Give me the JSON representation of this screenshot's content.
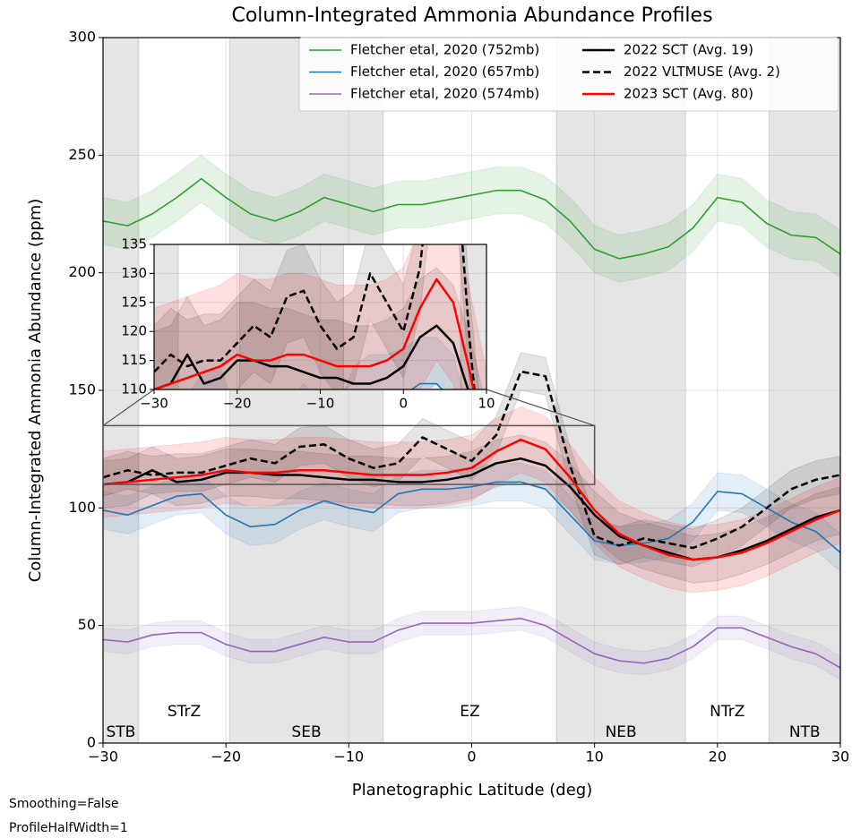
{
  "chart_data": {
    "type": "line",
    "title": "Column-Integrated Ammonia Abundance Profiles",
    "xlabel": "Planetographic Latitude (deg)",
    "ylabel": "Column-Integrated Ammonia Abundance (ppm)",
    "x": [
      -30,
      -28,
      -26,
      -24,
      -22,
      -20,
      -18,
      -16,
      -14,
      -12,
      -10,
      -8,
      -6,
      -4,
      -2,
      0,
      2,
      4,
      6,
      8,
      10,
      12,
      14,
      16,
      18,
      20,
      22,
      24,
      26,
      28,
      30
    ],
    "xlim": [
      -30,
      30
    ],
    "ylim": [
      0,
      300
    ],
    "xticks": [
      {
        "value": -30,
        "label": "−30"
      },
      {
        "value": -20,
        "label": "−20"
      },
      {
        "value": -10,
        "label": "−10"
      },
      0,
      10,
      20,
      30
    ],
    "yticks": [
      0,
      50,
      100,
      150,
      200,
      250,
      300
    ],
    "grid": true,
    "series": [
      {
        "name": "Fletcher etal, 2020 (752mb)",
        "color": "#2ca02c",
        "dash": false,
        "error": 10,
        "values": [
          222,
          220,
          225,
          232,
          240,
          232,
          225,
          222,
          226,
          232,
          229,
          226,
          229,
          229,
          231,
          233,
          235,
          235,
          231,
          222,
          210,
          206,
          208,
          211,
          219,
          232,
          230,
          221,
          216,
          215,
          208
        ]
      },
      {
        "name": "Fletcher etal, 2020 (657mb)",
        "color": "#1f77b4",
        "dash": false,
        "error": 8,
        "values": [
          99,
          97,
          101,
          105,
          106,
          97,
          92,
          93,
          99,
          103,
          100,
          98,
          106,
          108,
          108,
          109,
          111,
          111,
          108,
          97,
          86,
          84,
          85,
          87,
          94,
          107,
          106,
          100,
          94,
          90,
          81
        ]
      },
      {
        "name": "Fletcher etal, 2020 (574mb)",
        "color": "#9467bd",
        "dash": false,
        "error": 5,
        "values": [
          44,
          43,
          46,
          47,
          47,
          42,
          39,
          39,
          42,
          45,
          43,
          43,
          48,
          51,
          51,
          51,
          52,
          53,
          50,
          44,
          38,
          35,
          34,
          36,
          41,
          49,
          49,
          45,
          41,
          38,
          32
        ]
      },
      {
        "name": "2022 SCT (Avg. 19)",
        "color": "#000000",
        "dash": false,
        "error": 10,
        "values": [
          110,
          111,
          116,
          111,
          112,
          115,
          115,
          114,
          114,
          113,
          112,
          112,
          111,
          111,
          112,
          114,
          119,
          121,
          118,
          109,
          97,
          88,
          84,
          81,
          78,
          79,
          82,
          86,
          91,
          96,
          99
        ]
      },
      {
        "name": "2022 VLTMUSE (Avg. 2)",
        "color": "#000000",
        "dash": true,
        "error": 8,
        "values": [
          113,
          116,
          114,
          115,
          115,
          118,
          121,
          119,
          126,
          127,
          121,
          117,
          119,
          130,
          125,
          120,
          131,
          158,
          156,
          118,
          88,
          84,
          87,
          85,
          83,
          87,
          92,
          100,
          108,
          112,
          114
        ]
      },
      {
        "name": "2023 SCT (Avg. 80)",
        "color": "#ff0000",
        "dash": false,
        "error": 14,
        "values": [
          110,
          111,
          112,
          113,
          114,
          116,
          115,
          115,
          116,
          116,
          115,
          114,
          114,
          114,
          115,
          117,
          124,
          129,
          125,
          113,
          99,
          89,
          84,
          80,
          78,
          79,
          81,
          85,
          90,
          95,
          99
        ]
      }
    ],
    "zones": [
      {
        "name": "STB",
        "start": -30,
        "end": -27.1,
        "shaded": true
      },
      {
        "name": "STrZ",
        "start": -27.1,
        "end": -19.7,
        "shaded": false
      },
      {
        "name": "SEB",
        "start": -19.7,
        "end": -7.2,
        "shaded": true
      },
      {
        "name": "EZ",
        "start": -7.2,
        "end": 6.9,
        "shaded": false
      },
      {
        "name": "NEB",
        "start": 6.9,
        "end": 17.4,
        "shaded": true
      },
      {
        "name": "NTrZ",
        "start": 17.4,
        "end": 24.2,
        "shaded": false
      },
      {
        "name": "NTB",
        "start": 24.2,
        "end": 30,
        "shaded": true
      }
    ],
    "inset": {
      "xlim": [
        -30,
        10
      ],
      "ylim": [
        110,
        135
      ],
      "xticks": [
        {
          "value": -30,
          "label": "−30"
        },
        {
          "value": -20,
          "label": "−20"
        },
        {
          "value": -10,
          "label": "−10"
        },
        0,
        10
      ],
      "yticks": [
        110,
        115,
        120,
        125,
        130,
        135
      ]
    },
    "notes": [
      "Smoothing=False",
      "ProfileHalfWidth=1"
    ]
  }
}
